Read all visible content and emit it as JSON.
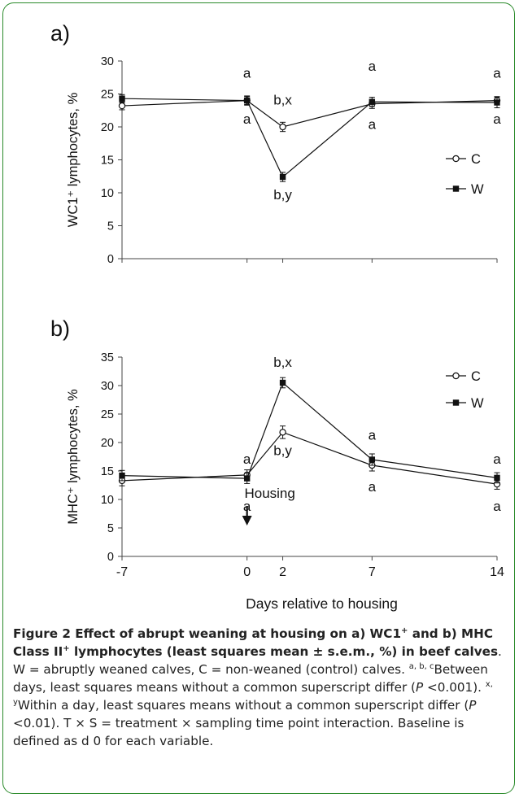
{
  "chart_data": [
    {
      "type": "line",
      "panel_label": "a)",
      "ylabel": "WC1⁺ lymphocytes, %",
      "ylim": [
        0,
        30
      ],
      "yticks": [
        0,
        5,
        10,
        15,
        20,
        25,
        30
      ],
      "x": [
        -7,
        0,
        2,
        7,
        14
      ],
      "xlim": [
        -7,
        14
      ],
      "legend_position": "right",
      "series": [
        {
          "name": "C",
          "marker": "open-circle",
          "values": [
            23.2,
            24.0,
            20.0,
            23.5,
            24.0
          ],
          "errors": [
            0.6,
            0.6,
            0.7,
            0.7,
            0.6
          ]
        },
        {
          "name": "W",
          "marker": "filled-square",
          "values": [
            24.3,
            24.0,
            12.4,
            23.8,
            23.7
          ],
          "errors": [
            0.6,
            0.7,
            0.7,
            0.7,
            0.8
          ]
        }
      ],
      "annotations": [
        {
          "x": 0,
          "y": 27.5,
          "text": "a"
        },
        {
          "x": 0,
          "y": 20.5,
          "text": "a"
        },
        {
          "x": 2,
          "y": 23.4,
          "text": "b,x"
        },
        {
          "x": 2,
          "y": 9.0,
          "text": "b,y"
        },
        {
          "x": 7,
          "y": 28.5,
          "text": "a"
        },
        {
          "x": 7,
          "y": 19.7,
          "text": "a"
        },
        {
          "x": 14,
          "y": 27.5,
          "text": "a"
        },
        {
          "x": 14,
          "y": 20.5,
          "text": "a"
        }
      ]
    },
    {
      "type": "line",
      "panel_label": "b)",
      "ylabel": "MHC⁺ lymphocytes, %",
      "xlabel": "Days relative to housing",
      "ylim": [
        0,
        35
      ],
      "yticks": [
        0,
        5,
        10,
        15,
        20,
        25,
        30,
        35
      ],
      "x": [
        -7,
        0,
        2,
        7,
        14
      ],
      "xticks": [
        "-7",
        "0",
        "2",
        "7",
        "14"
      ],
      "xlim": [
        -7,
        14
      ],
      "legend_position": "top-right",
      "series": [
        {
          "name": "C",
          "marker": "open-circle",
          "values": [
            13.3,
            14.3,
            21.8,
            16.0,
            12.7
          ],
          "errors": [
            0.9,
            0.9,
            1.1,
            1.0,
            0.9
          ]
        },
        {
          "name": "W",
          "marker": "filled-square",
          "values": [
            14.2,
            13.7,
            30.5,
            17.0,
            13.8
          ],
          "errors": [
            0.9,
            0.9,
            0.9,
            1.0,
            0.9
          ]
        }
      ],
      "annotations": [
        {
          "x": 0,
          "y": 16.3,
          "text": "a"
        },
        {
          "x": 0,
          "y": 8.0,
          "text": "a"
        },
        {
          "x": 2,
          "y": 33.3,
          "text": "b,x"
        },
        {
          "x": 2,
          "y": 17.8,
          "text": "b,y"
        },
        {
          "x": 7,
          "y": 20.5,
          "text": "a"
        },
        {
          "x": 7,
          "y": 11.4,
          "text": "a"
        },
        {
          "x": 14,
          "y": 16.3,
          "text": "a"
        },
        {
          "x": 14,
          "y": 8.0,
          "text": "a"
        }
      ],
      "event_marker": {
        "x": 0,
        "text": "Housing"
      }
    }
  ],
  "caption": {
    "title": "Figure 2 Effect of abrupt weaning at housing on a) WC1",
    "title_sup1": "+",
    "title_mid": " and b) MHC Class II",
    "title_sup2": "+",
    "title_end": " lymphocytes (least squares mean ± s.e.m., %) in beef calves",
    "body_1": ". W = abruptly weaned calves, C = non-weaned (control) calves. ",
    "sup_abc": "a, b, c",
    "body_2": "Between days, least squares means without a common superscript differ (",
    "p_1": "P",
    "body_3": " <0.001). ",
    "sup_xy": "x, y",
    "body_4": "Within a day, least squares means without a common superscript differ (",
    "p_2": "P",
    "body_5": " <0.01). T × S = treatment × sampling time point interaction. Baseline is defined as d 0 for each variable."
  }
}
